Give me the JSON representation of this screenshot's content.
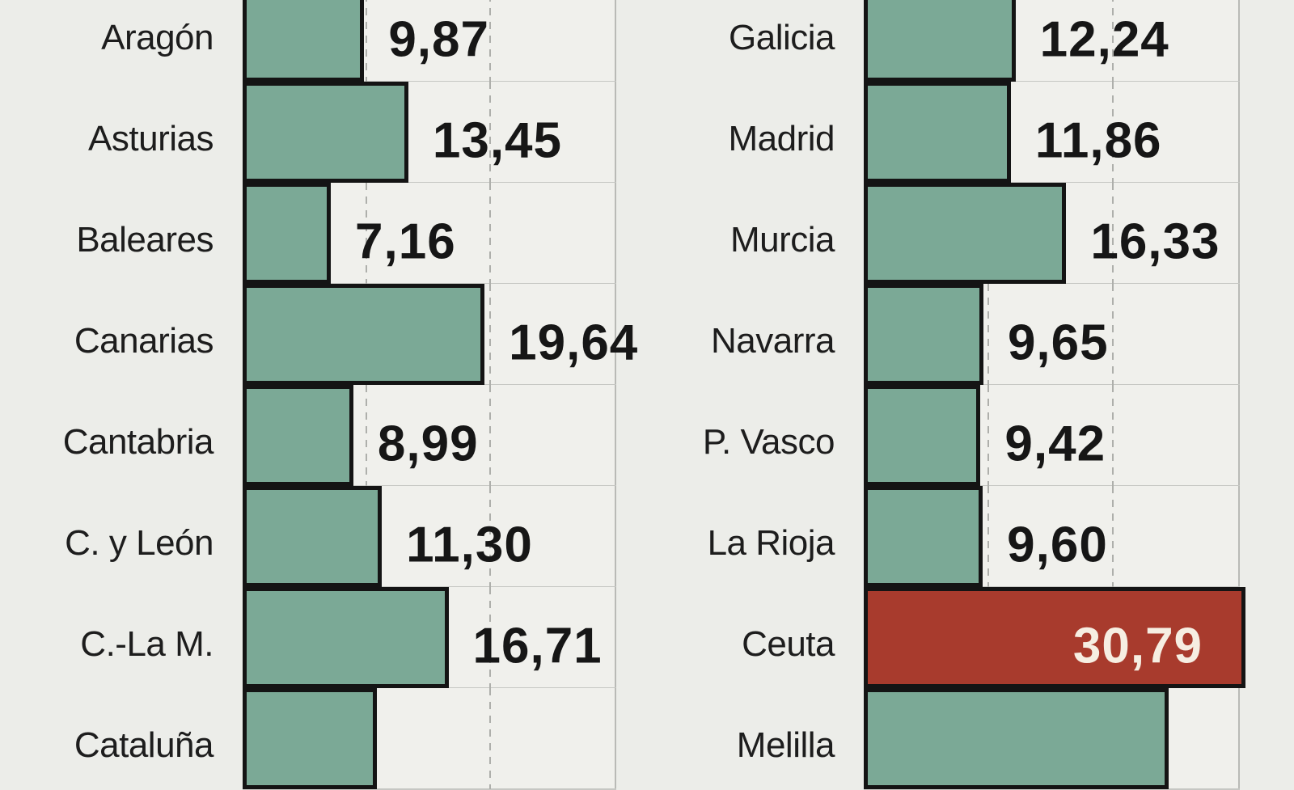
{
  "chart_data": {
    "type": "bar",
    "orientation": "horizontal",
    "title": "",
    "xlabel": "",
    "ylabel": "",
    "xlim": [
      0,
      30.2
    ],
    "gridlines_x": [
      10,
      20
    ],
    "grid_style": "dashed-vertical",
    "decimal_separator": ",",
    "colors": {
      "bar": "#7ba996",
      "highlight": "#a83b2d",
      "bar_border": "#141414",
      "track_bg": "#f0f0ec",
      "page_bg": "#ecede9",
      "value_text": "#161616",
      "value_text_inside": "#f6eee2",
      "label_text": "#1d1d1d"
    },
    "columns": [
      {
        "side": "left",
        "rows": [
          {
            "label": "Aragón",
            "value": 9.87,
            "value_label": "9,87",
            "highlight": false,
            "value_inside": false,
            "cropped": false
          },
          {
            "label": "Asturias",
            "value": 13.45,
            "value_label": "13,45",
            "highlight": false,
            "value_inside": false,
            "cropped": false
          },
          {
            "label": "Baleares",
            "value": 7.16,
            "value_label": "7,16",
            "highlight": false,
            "value_inside": false,
            "cropped": false
          },
          {
            "label": "Canarias",
            "value": 19.64,
            "value_label": "19,64",
            "highlight": false,
            "value_inside": false,
            "cropped": false
          },
          {
            "label": "Cantabria",
            "value": 8.99,
            "value_label": "8,99",
            "highlight": false,
            "value_inside": false,
            "cropped": false
          },
          {
            "label": "C. y León",
            "value": 11.3,
            "value_label": "11,30",
            "highlight": false,
            "value_inside": false,
            "cropped": false
          },
          {
            "label": "C.-La M.",
            "value": 16.71,
            "value_label": "16,71",
            "highlight": false,
            "value_inside": false,
            "cropped": false
          },
          {
            "label": "Cataluña",
            "value": 10.9,
            "value_label": "",
            "highlight": false,
            "value_inside": false,
            "cropped": true,
            "estimated": true
          }
        ]
      },
      {
        "side": "right",
        "rows": [
          {
            "label": "Galicia",
            "value": 12.24,
            "value_label": "12,24",
            "highlight": false,
            "value_inside": false,
            "cropped": false
          },
          {
            "label": "Madrid",
            "value": 11.86,
            "value_label": "11,86",
            "highlight": false,
            "value_inside": false,
            "cropped": false
          },
          {
            "label": "Murcia",
            "value": 16.33,
            "value_label": "16,33",
            "highlight": false,
            "value_inside": false,
            "cropped": false
          },
          {
            "label": "Navarra",
            "value": 9.65,
            "value_label": "9,65",
            "highlight": false,
            "value_inside": false,
            "cropped": false
          },
          {
            "label": "P. Vasco",
            "value": 9.42,
            "value_label": "9,42",
            "highlight": false,
            "value_inside": false,
            "cropped": false
          },
          {
            "label": "La Rioja",
            "value": 9.6,
            "value_label": "9,60",
            "highlight": false,
            "value_inside": false,
            "cropped": false
          },
          {
            "label": "Ceuta",
            "value": 30.79,
            "value_label": "30,79",
            "highlight": true,
            "value_inside": true,
            "cropped": false
          },
          {
            "label": "Melilla",
            "value": 24.6,
            "value_label": "",
            "highlight": false,
            "value_inside": true,
            "cropped": true,
            "estimated": true
          }
        ]
      }
    ]
  }
}
